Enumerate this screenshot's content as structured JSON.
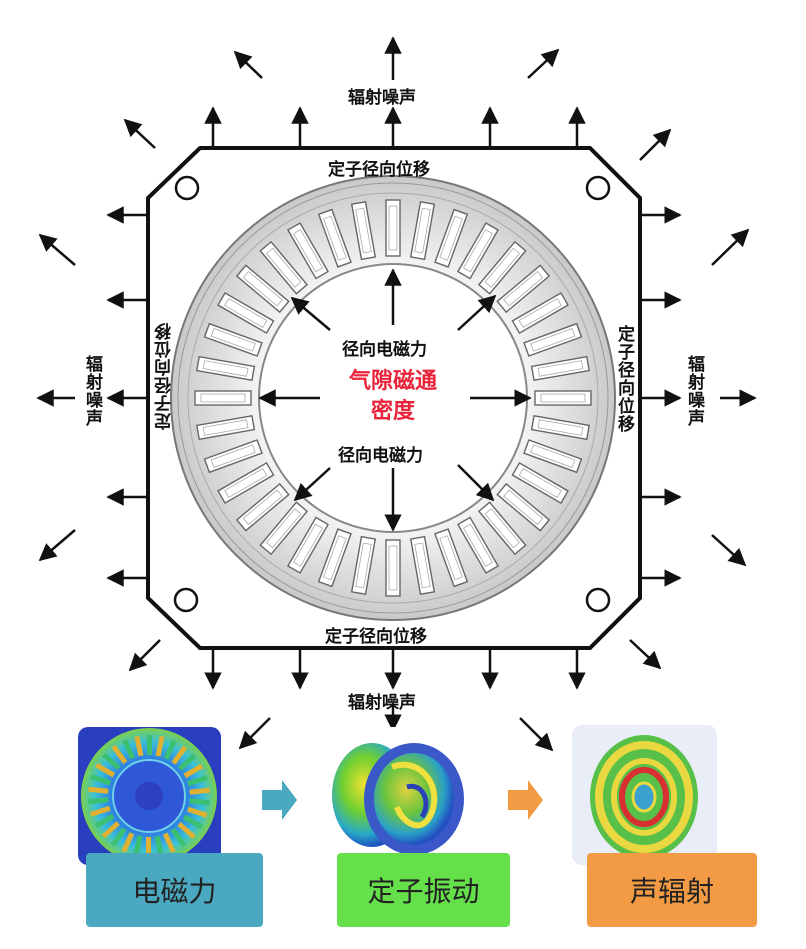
{
  "labels": {
    "radiation_noise": "辐射噪声",
    "stator_radial_displacement": "定子径向位移",
    "radial_em_force": "径向电磁力",
    "air_gap_flux_line1": "气隙磁通",
    "air_gap_flux_line2": "密度"
  },
  "process": {
    "step1": "电磁力",
    "step2": "定子振动",
    "step3": "声辐射"
  },
  "colors": {
    "flux_label": "#e8233a",
    "step1_box": "#4aa8c0",
    "step2_box": "#66e04a",
    "step3_box": "#f39a44",
    "arrow1": "#4aa8c0",
    "arrow2": "#f39a44"
  }
}
